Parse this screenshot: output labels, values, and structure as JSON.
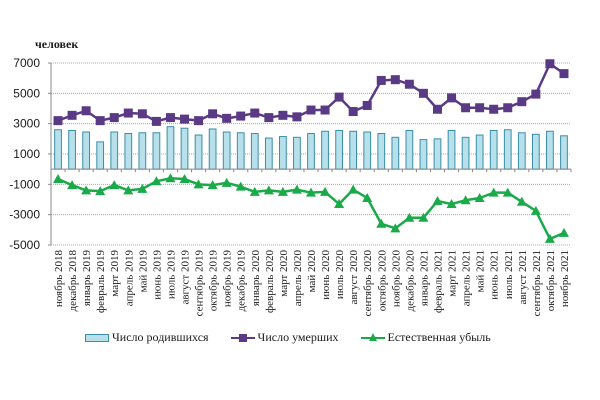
{
  "chart_data": {
    "type": "bar",
    "title": "",
    "unit_label": "человек",
    "xlabel": "",
    "ylabel": "человек",
    "ylim": [
      -5000,
      7000
    ],
    "yticks": [
      7000,
      5000,
      3000,
      1000,
      -1000,
      -3000,
      -5000
    ],
    "grid": true,
    "legend_position": "bottom",
    "categories": [
      "ноябрь 2018",
      "декабрь 2018",
      "январь 2019",
      "февраль 2019",
      "март 2019",
      "апрель 2019",
      "май 2019",
      "июнь 2019",
      "июль 2019",
      "август 2019",
      "сентябрь 2019",
      "октябрь 2019",
      "ноябрь 2019",
      "декабрь 2019",
      "январь 2020",
      "февраль 2020",
      "март 2020",
      "апрель 2020",
      "май 2020",
      "июнь 2020",
      "июль 2020",
      "август 2020",
      "сентябрь 2020",
      "октябрь 2020",
      "ноябрь 2020",
      "декабрь 2020",
      "январь 2021",
      "февраль 2021",
      "март 2021",
      "апрель 2021",
      "май 2021",
      "июнь 2021",
      "июль 2021",
      "август 2021",
      "сентябрь 2021",
      "октябрь 2021",
      "ноябрь 2021"
    ],
    "series": [
      {
        "name": "Число родившихся",
        "type": "bar",
        "color": "#b7e0ea",
        "stroke": "#3a8ea8",
        "values": [
          2600,
          2550,
          2450,
          1800,
          2450,
          2350,
          2400,
          2400,
          2800,
          2700,
          2250,
          2650,
          2450,
          2400,
          2350,
          2050,
          2150,
          2100,
          2350,
          2500,
          2550,
          2500,
          2450,
          2350,
          2100,
          2550,
          1950,
          2000,
          2550,
          2100,
          2250,
          2550,
          2600,
          2400,
          2300,
          2500,
          2200
        ]
      },
      {
        "name": "Число умерших",
        "type": "line",
        "marker": "square",
        "color": "#5b3a85",
        "values": [
          3200,
          3550,
          3850,
          3200,
          3400,
          3700,
          3650,
          3150,
          3400,
          3300,
          3200,
          3650,
          3350,
          3500,
          3700,
          3400,
          3550,
          3450,
          3900,
          3900,
          4750,
          3800,
          4200,
          5850,
          5900,
          5600,
          5000,
          3950,
          4700,
          4050,
          4050,
          3950,
          4050,
          4450,
          4950,
          6950,
          6300
        ]
      },
      {
        "name": "Естественная убыль",
        "type": "line",
        "marker": "triangle",
        "color": "#1aaa4a",
        "values": [
          -650,
          -1050,
          -1400,
          -1450,
          -1050,
          -1400,
          -1300,
          -800,
          -600,
          -650,
          -1000,
          -1050,
          -900,
          -1150,
          -1500,
          -1400,
          -1500,
          -1350,
          -1550,
          -1500,
          -2300,
          -1350,
          -1900,
          -3600,
          -3900,
          -3200,
          -3200,
          -2100,
          -2300,
          -2050,
          -1900,
          -1550,
          -1550,
          -2150,
          -2750,
          -4600,
          -4200
        ]
      }
    ]
  },
  "legend": {
    "items": [
      {
        "label": "Число родившихся"
      },
      {
        "label": "Число умерших"
      },
      {
        "label": "Естественная убыль"
      }
    ]
  }
}
